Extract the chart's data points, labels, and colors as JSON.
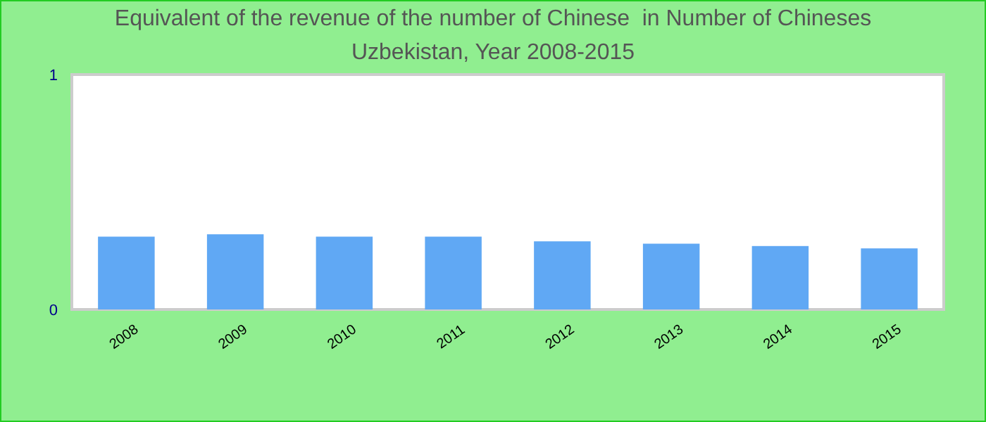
{
  "chart_data": {
    "type": "bar",
    "title": "Equivalent of the revenue of the number of Chinese  in Number of Chineses\nUzbekistan, Year 2008-2015",
    "categories": [
      "2008",
      "2009",
      "2010",
      "2011",
      "2012",
      "2013",
      "2014",
      "2015"
    ],
    "values": [
      0.31,
      0.32,
      0.31,
      0.31,
      0.29,
      0.28,
      0.27,
      0.26
    ],
    "color": "#60a8f4",
    "ylim": [
      0,
      1
    ],
    "yticks": [
      0,
      1
    ],
    "grid": false
  }
}
